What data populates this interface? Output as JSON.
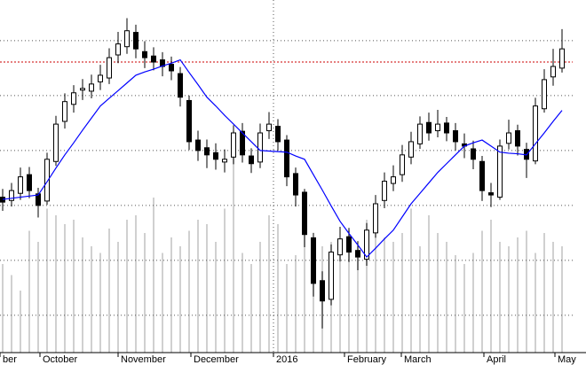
{
  "chart_data": {
    "type": "candlestick",
    "open": [
      71.5,
      70.9,
      72.2,
      75.6,
      72.1,
      70.8,
      78.0,
      85.3,
      88.4,
      91.0,
      90.8,
      92.5,
      93.2,
      97.4,
      98.9,
      101.5,
      98.0,
      97.2,
      96.5,
      95.7,
      94.0,
      89.1,
      81.9,
      80.5,
      79.6,
      77.9,
      78.8,
      83.5,
      79.0,
      77.9,
      83.6,
      84.4,
      81.9,
      75.8,
      72.4,
      64.1,
      56.3,
      52.9,
      61.0,
      64.3,
      61.8,
      60.2,
      65.0,
      70.9,
      74.0,
      75.6,
      78.8,
      81.2,
      85.1,
      83.6,
      85.0,
      83.6,
      81.2,
      80.3,
      78.0,
      72.3,
      71.5,
      81.3,
      83.6,
      80.2,
      78.1,
      87.6,
      93.4,
      95.0
    ],
    "high": [
      73.0,
      74.1,
      76.9,
      77.0,
      73.2,
      79.6,
      86.3,
      90.4,
      91.9,
      93.0,
      93.8,
      95.6,
      98.6,
      101.6,
      104.1,
      102.9,
      99.9,
      98.8,
      97.9,
      97.1,
      95.2,
      90.0,
      83.6,
      82.0,
      81.3,
      80.2,
      84.6,
      85.0,
      80.4,
      84.9,
      87.0,
      85.7,
      82.8,
      76.9,
      73.0,
      65.0,
      58.0,
      62.9,
      66.1,
      65.9,
      63.5,
      66.8,
      71.9,
      76.0,
      77.3,
      81.0,
      83.4,
      86.2,
      86.9,
      87.4,
      86.1,
      85.0,
      83.1,
      81.8,
      79.0,
      74.1,
      82.0,
      85.6,
      84.7,
      81.4,
      89.6,
      94.8,
      98.5,
      102.1
    ],
    "low": [
      69.0,
      69.8,
      71.0,
      71.3,
      67.8,
      70.1,
      77.2,
      84.0,
      86.9,
      89.2,
      89.5,
      91.0,
      92.1,
      95.9,
      97.6,
      96.8,
      95.0,
      94.6,
      93.5,
      92.8,
      88.0,
      80.1,
      78.1,
      76.8,
      76.5,
      76.0,
      77.5,
      77.8,
      75.9,
      76.8,
      82.1,
      80.0,
      73.5,
      69.8,
      62.4,
      53.4,
      47.6,
      51.8,
      59.8,
      59.7,
      58.2,
      59.0,
      64.1,
      69.5,
      72.6,
      74.3,
      77.5,
      80.3,
      81.8,
      82.4,
      81.7,
      80.0,
      78.6,
      76.6,
      70.8,
      69.7,
      71.0,
      80.2,
      79.1,
      75.0,
      77.5,
      86.9,
      91.8,
      94.2
    ],
    "close": [
      70.6,
      72.7,
      75.2,
      72.7,
      70.0,
      78.4,
      84.8,
      88.9,
      90.5,
      91.3,
      92.1,
      93.7,
      96.9,
      99.4,
      101.8,
      98.5,
      96.9,
      96.1,
      95.3,
      94.5,
      89.7,
      81.6,
      80.0,
      79.2,
      78.4,
      78.4,
      83.2,
      79.2,
      77.6,
      83.2,
      84.8,
      81.6,
      75.2,
      71.9,
      64.7,
      55.8,
      52.6,
      61.5,
      63.9,
      61.5,
      60.6,
      65.5,
      70.3,
      74.4,
      75.2,
      79.2,
      81.6,
      84.8,
      83.2,
      84.8,
      83.2,
      81.6,
      80.8,
      78.4,
      72.7,
      71.9,
      80.8,
      83.2,
      80.8,
      78.4,
      88.1,
      92.9,
      95.3,
      98.5
    ],
    "moving_average": {
      "color": "#0000ff",
      "values": [
        71.1,
        71.3,
        71.5,
        71.7,
        71.9,
        74.3,
        76.8,
        79.2,
        81.4,
        83.7,
        85.9,
        88.1,
        89.5,
        90.9,
        92.3,
        93.7,
        94.3,
        94.8,
        95.4,
        95.9,
        96.5,
        94.2,
        92.0,
        89.7,
        88.1,
        86.4,
        84.8,
        83.2,
        81.6,
        80.0,
        79.9,
        79.8,
        79.7,
        79.0,
        78.4,
        75.6,
        72.8,
        69.9,
        67.1,
        64.9,
        62.8,
        60.6,
        62.2,
        63.9,
        65.5,
        67.9,
        70.3,
        72.2,
        74.1,
        76.0,
        77.6,
        79.2,
        80.8,
        81.4,
        81.9,
        80.8,
        79.7,
        79.5,
        79.4,
        79.2,
        81.2,
        83.2,
        85.3,
        87.3
      ]
    },
    "volume": {
      "axis": "y2",
      "color": "#c0c0c0",
      "values": [
        40,
        35,
        28,
        55,
        50,
        65,
        62,
        58,
        60,
        52,
        48,
        45,
        56,
        50,
        60,
        62,
        54,
        70,
        45,
        52,
        48,
        55,
        60,
        58,
        50,
        65,
        100,
        45,
        40,
        50,
        62,
        58,
        40,
        44,
        70,
        52,
        48,
        50,
        46,
        55,
        48,
        60,
        56,
        52,
        50,
        54,
        65,
        48,
        62,
        54,
        50,
        44,
        40,
        45,
        55,
        60,
        50,
        48,
        52,
        55,
        45,
        54,
        50,
        48
      ]
    },
    "xlim": [
      -0.3,
      65.7
    ],
    "xticks": [
      {
        "value": -0.3,
        "label": "ber"
      },
      {
        "value": 4.2,
        "label": "October"
      },
      {
        "value": 13,
        "label": "November"
      },
      {
        "value": 21.2,
        "label": "December"
      },
      {
        "value": 30.5,
        "label": "2016"
      },
      {
        "value": 38.5,
        "label": "February"
      },
      {
        "value": 44.9,
        "label": "March"
      },
      {
        "value": 54.2,
        "label": "April"
      },
      {
        "value": 62.2,
        "label": "May"
      }
    ],
    "ylim": [
      43.2,
      107.4
    ],
    "yticks": [
      50,
      60,
      70,
      80,
      90,
      100
    ],
    "y2lim": [
      0,
      159.2
    ],
    "reference_line": {
      "value": 96.1,
      "color": "#cc0000"
    },
    "grid": true,
    "candle_color": "#000000"
  }
}
